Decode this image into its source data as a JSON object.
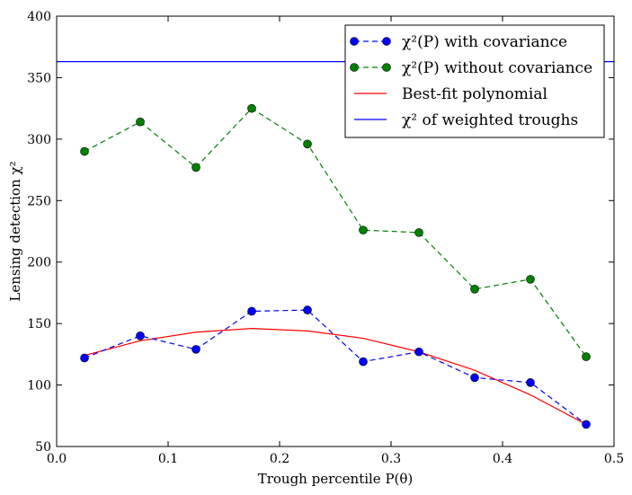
{
  "chart_data": {
    "type": "line",
    "title": "",
    "xlabel": "Trough percentile P(θ)",
    "ylabel": "Lensing detection χ²",
    "xlim": [
      0.0,
      0.5
    ],
    "ylim": [
      50,
      400
    ],
    "x_ticks": [
      0.0,
      0.1,
      0.2,
      0.3,
      0.4,
      0.5
    ],
    "x_tick_labels": [
      "0.0",
      "0.1",
      "0.2",
      "0.3",
      "0.4",
      "0.5"
    ],
    "y_ticks": [
      50,
      100,
      150,
      200,
      250,
      300,
      350,
      400
    ],
    "y_tick_labels": [
      "50",
      "100",
      "150",
      "200",
      "250",
      "300",
      "350",
      "400"
    ],
    "grid": false,
    "legend_position": "top-right",
    "series": [
      {
        "name": "χ²(P) with covariance",
        "color": "#0000ff",
        "style": "dashed",
        "marker": "circle",
        "x": [
          0.025,
          0.075,
          0.125,
          0.175,
          0.225,
          0.275,
          0.325,
          0.375,
          0.425,
          0.475
        ],
        "y": [
          122,
          140,
          129,
          160,
          161,
          119,
          127,
          106,
          102,
          68
        ]
      },
      {
        "name": "χ²(P) without covariance",
        "color": "#008000",
        "style": "dashed",
        "marker": "circle",
        "x": [
          0.025,
          0.075,
          0.125,
          0.175,
          0.225,
          0.275,
          0.325,
          0.375,
          0.425,
          0.475
        ],
        "y": [
          290,
          314,
          277,
          325,
          296,
          226,
          224,
          178,
          186,
          123
        ]
      },
      {
        "name": "Best-fit polynomial",
        "color": "#ff0000",
        "style": "solid",
        "marker": "none",
        "x": [
          0.025,
          0.075,
          0.125,
          0.175,
          0.225,
          0.275,
          0.325,
          0.375,
          0.425,
          0.475
        ],
        "y": [
          124,
          136,
          143,
          146,
          144,
          138,
          127,
          112,
          92,
          68
        ]
      },
      {
        "name": "χ² of weighted troughs",
        "color": "#0000ff",
        "style": "solid",
        "marker": "none",
        "x": [
          0.0,
          0.5
        ],
        "y": [
          363,
          363
        ]
      }
    ]
  }
}
